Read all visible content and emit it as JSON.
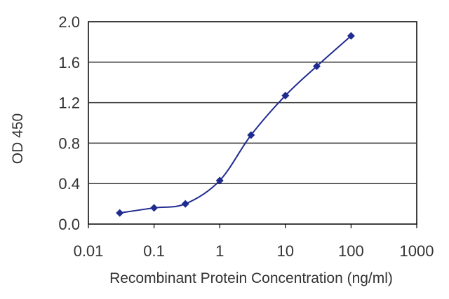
{
  "chart_data": {
    "type": "line",
    "xlabel": "Recombinant Protein Concentration (ng/ml)",
    "ylabel": "OD 450",
    "x_scale": "log",
    "xlim": [
      0.01,
      1000
    ],
    "ylim": [
      0.0,
      2.0
    ],
    "grid": "horizontal",
    "x_ticks": [
      "0.01",
      "0.1",
      "1",
      "10",
      "100",
      "1000"
    ],
    "y_ticks": [
      "0.0",
      "0.4",
      "0.8",
      "1.2",
      "1.6",
      "2.0"
    ],
    "line_color": "#1f2b8f",
    "series": [
      {
        "x": [
          0.03,
          0.1,
          0.3,
          1,
          3,
          10,
          30,
          100
        ],
        "y": [
          0.11,
          0.16,
          0.2,
          0.43,
          0.88,
          1.27,
          1.56,
          1.86
        ]
      }
    ]
  }
}
